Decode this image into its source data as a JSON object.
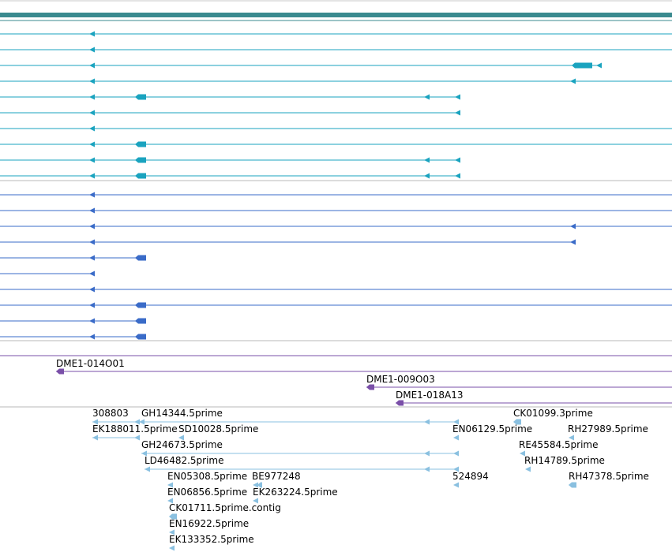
{
  "colors": {
    "scale_bar": "#3a8a8f",
    "transcript_teal": "#1aa3bf",
    "transcript_blue": "#3a6bc8",
    "assembly_purple": "#7a4fa8",
    "est_light_blue": "#8ac0e0",
    "separator": "#b8b8b8"
  },
  "tracks": {
    "gene_models": {
      "track_color": "#1aa3bf",
      "rows": [
        {
          "shape": "intron_line_with_exons"
        },
        {
          "shape": "intron_line_with_exons"
        },
        {
          "shape": "intron_line_with_exons"
        },
        {
          "shape": "intron_line_with_exons"
        },
        {
          "shape": "intron_line_with_exons"
        },
        {
          "shape": "intron_line_with_exons"
        },
        {
          "shape": "intron_line_with_exons"
        },
        {
          "shape": "intron_line_with_exons"
        },
        {
          "shape": "intron_line_with_exons"
        },
        {
          "shape": "intron_line_with_exons"
        }
      ]
    },
    "second_gene_models": {
      "track_color": "#3a6bc8",
      "rows": [
        {
          "shape": "intron_line_with_exons"
        },
        {
          "shape": "intron_line_with_exons"
        },
        {
          "shape": "intron_line_with_exons"
        },
        {
          "shape": "intron_line_with_exons"
        },
        {
          "shape": "intron_line_with_exons"
        },
        {
          "shape": "intron_line_with_exons"
        },
        {
          "shape": "intron_line_with_exons"
        },
        {
          "shape": "intron_line_with_exons"
        },
        {
          "shape": "intron_line_with_exons"
        },
        {
          "shape": "intron_line_with_exons"
        }
      ]
    },
    "assemblies": [
      {
        "label": "DME1-014O01"
      },
      {
        "label": "DME1-009O03"
      },
      {
        "label": "DME1-018A13"
      }
    ],
    "ests": [
      {
        "label": "308803"
      },
      {
        "label": "GH14344.5prime"
      },
      {
        "label": "CK01099.3prime"
      },
      {
        "label": "EK188011.5prime"
      },
      {
        "label": "SD10028.5prime"
      },
      {
        "label": "EN06129.5prime"
      },
      {
        "label": "RH27989.5prime"
      },
      {
        "label": "GH24673.5prime"
      },
      {
        "label": "RE45584.5prime"
      },
      {
        "label": "LD46482.5prime"
      },
      {
        "label": "RH14789.5prime"
      },
      {
        "label": "EN05308.5prime"
      },
      {
        "label": "BE977248"
      },
      {
        "label": "524894"
      },
      {
        "label": "RH47378.5prime"
      },
      {
        "label": "EN06856.5prime"
      },
      {
        "label": "EK263224.5prime"
      },
      {
        "label": "CK01711.5prime.contig"
      },
      {
        "label": "EN16922.5prime"
      },
      {
        "label": "EK133352.5prime"
      }
    ]
  }
}
